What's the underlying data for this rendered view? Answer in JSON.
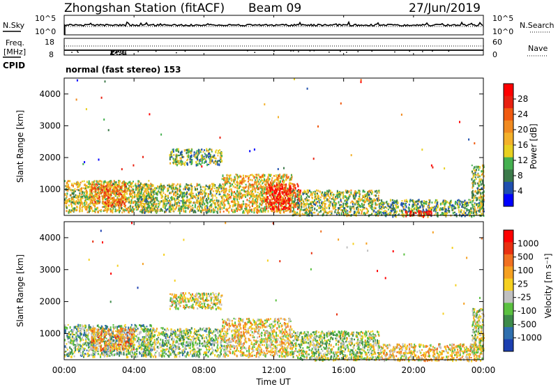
{
  "header": {
    "title": "Zhongshan Station (fitACF)",
    "beam": "Beam 09",
    "date": "27/Jun/2019"
  },
  "noise_panel": {
    "left_label": "N.Sky",
    "left_ticks": [
      "10^5",
      "10^0"
    ],
    "right_ticks": [
      "10^5",
      "10^0"
    ],
    "right_label": "N.Search"
  },
  "freq_panel": {
    "left_label_1": "Freq.",
    "left_label_2": "[MHz]",
    "left_ticks": [
      "18",
      "8"
    ],
    "right_ticks": [
      "60",
      "0"
    ],
    "right_label": "Nave"
  },
  "cpid": {
    "label": "CPID",
    "program": "normal (fast stereo) 153"
  },
  "power_panel": {
    "ylabel": "Slant Range [km]",
    "yticks": [
      "1000",
      "2000",
      "3000",
      "4000"
    ],
    "colorbar_label": "Power [dB]",
    "colorbar_ticks": [
      "4",
      "8",
      "12",
      "16",
      "20",
      "24",
      "28"
    ],
    "colors": [
      "#0000ff",
      "#1f4fae",
      "#3c7a4a",
      "#45b050",
      "#e8d020",
      "#f3b12a",
      "#f08a20",
      "#f05a10",
      "#e82010",
      "#ff0000"
    ]
  },
  "velocity_panel": {
    "ylabel": "Slant Range [km]",
    "yticks": [
      "1000",
      "2000",
      "3000",
      "4000"
    ],
    "colorbar_label": "Velocity [m s⁻¹]",
    "colorbar_ticks": [
      "1000",
      "500",
      "100",
      "25",
      "-25",
      "-100",
      "-500",
      "-1000"
    ],
    "colors": [
      "#1c3fb0",
      "#2f6fae",
      "#3d8a4a",
      "#5ac040",
      "#c0c0c0",
      "#f5d020",
      "#f5a020",
      "#f07020",
      "#e83010",
      "#ff0000"
    ]
  },
  "xaxis": {
    "xticks": [
      "00:00",
      "04:00",
      "08:00",
      "12:00",
      "16:00",
      "20:00",
      "00:00"
    ],
    "xlabel": "Time UT"
  },
  "chart_data": {
    "type": "heatmap",
    "title": "Zhongshan Station (fitACF)",
    "xlabel": "Time UT",
    "ylabel": "Slant Range [km]",
    "xlim": [
      0,
      24
    ],
    "ylim": [
      180,
      4500
    ],
    "panels": [
      {
        "name": "Power [dB]",
        "clim": [
          0,
          30
        ],
        "echo_regions": [
          {
            "t_start": 0.0,
            "t_end": 5.0,
            "r_min": 300,
            "r_max": 1300,
            "value": 14
          },
          {
            "t_start": 1.5,
            "t_end": 3.5,
            "r_min": 500,
            "r_max": 1200,
            "value": 20
          },
          {
            "t_start": 4.0,
            "t_end": 9.0,
            "r_min": 300,
            "r_max": 1200,
            "value": 12
          },
          {
            "t_start": 6.0,
            "t_end": 9.0,
            "r_min": 1800,
            "r_max": 2300,
            "value": 10
          },
          {
            "t_start": 9.0,
            "t_end": 13.0,
            "r_min": 300,
            "r_max": 1500,
            "value": 16
          },
          {
            "t_start": 11.5,
            "t_end": 13.5,
            "r_min": 400,
            "r_max": 1200,
            "value": 26
          },
          {
            "t_start": 13.0,
            "t_end": 18.0,
            "r_min": 200,
            "r_max": 1000,
            "value": 12
          },
          {
            "t_start": 18.0,
            "t_end": 24.0,
            "r_min": 180,
            "r_max": 700,
            "value": 10
          },
          {
            "t_start": 19.5,
            "t_end": 21.0,
            "r_min": 180,
            "r_max": 350,
            "value": 26
          },
          {
            "t_start": 23.3,
            "t_end": 24.0,
            "r_min": 400,
            "r_max": 1800,
            "value": 12
          }
        ]
      },
      {
        "name": "Velocity [m s-1]",
        "clim": [
          -1000,
          1000
        ],
        "echo_regions": [
          {
            "t_start": 0.0,
            "t_end": 5.0,
            "r_min": 300,
            "r_max": 1300,
            "value": -300
          },
          {
            "t_start": 1.5,
            "t_end": 4.0,
            "r_min": 500,
            "r_max": 1200,
            "value": 300
          },
          {
            "t_start": 4.5,
            "t_end": 9.0,
            "r_min": 300,
            "r_max": 1200,
            "value": -200
          },
          {
            "t_start": 6.0,
            "t_end": 9.0,
            "r_min": 1800,
            "r_max": 2300,
            "value": 0
          },
          {
            "t_start": 9.0,
            "t_end": 13.0,
            "r_min": 300,
            "r_max": 1500,
            "value": 80
          },
          {
            "t_start": 13.0,
            "t_end": 18.0,
            "r_min": 200,
            "r_max": 1100,
            "value": -150
          },
          {
            "t_start": 18.0,
            "t_end": 24.0,
            "r_min": 180,
            "r_max": 700,
            "value": 80
          },
          {
            "t_start": 23.3,
            "t_end": 24.0,
            "r_min": 400,
            "r_max": 1800,
            "value": -80
          }
        ]
      }
    ]
  }
}
